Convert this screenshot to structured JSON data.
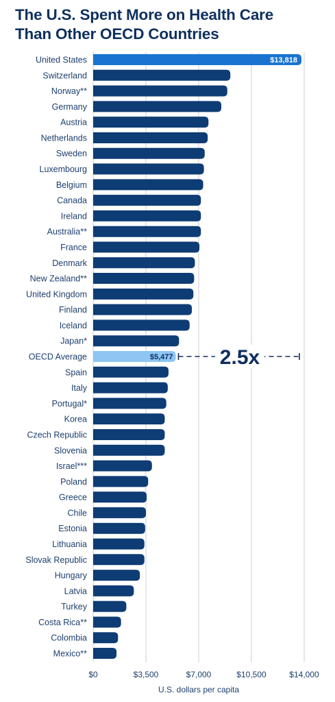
{
  "title_lines": [
    "The U.S. Spent More on Health Care",
    "Than Other OECD Countries"
  ],
  "colors": {
    "bar": "#0e3c74",
    "highlight": "#1a73d0",
    "average": "#8ec6f2",
    "text": "#1d3f6e",
    "grid": "#c9cdd3"
  },
  "chart_data": {
    "type": "bar",
    "orientation": "horizontal",
    "title": "The U.S. Spent More on Health Care Than Other OECD Countries",
    "xlabel": "U.S. dollars per capita",
    "ylabel": "",
    "xlim": [
      0,
      14000
    ],
    "ticks": [
      0,
      3500,
      7000,
      10500,
      14000
    ],
    "tick_labels": [
      "$0",
      "$3,500",
      "$7,000",
      "$10,500",
      "$14,000"
    ],
    "grid": true,
    "categories": [
      "United States",
      "Switzerland",
      "Norway**",
      "Germany",
      "Austria",
      "Netherlands",
      "Sweden",
      "Luxembourg",
      "Belgium",
      "Canada",
      "Ireland",
      "Australia**",
      "France",
      "Denmark",
      "New Zealand**",
      "United Kingdom",
      "Finland",
      "Iceland",
      "Japan*",
      "OECD Average",
      "Spain",
      "Italy",
      "Portugal*",
      "Korea",
      "Czech Republic",
      "Slovenia",
      "Israel***",
      "Poland",
      "Greece",
      "Chile",
      "Estonia",
      "Lithuania",
      "Slovak Republic",
      "Hungary",
      "Latvia",
      "Turkey",
      "Costa Rica**",
      "Colombia",
      "Mexico**"
    ],
    "values": [
      13818,
      9100,
      8900,
      8500,
      7650,
      7600,
      7400,
      7350,
      7300,
      7150,
      7150,
      7150,
      7050,
      6750,
      6700,
      6650,
      6550,
      6400,
      5700,
      5477,
      5000,
      4950,
      4850,
      4750,
      4750,
      4750,
      3900,
      3650,
      3550,
      3500,
      3450,
      3400,
      3400,
      3100,
      2700,
      2200,
      1850,
      1650,
      1550
    ],
    "data_labels": [
      {
        "index": 0,
        "text": "$13,818"
      },
      {
        "index": 19,
        "text": "$5,477"
      }
    ],
    "highlight_index": 0,
    "average_index": 19,
    "annotation": {
      "text": "2.5x",
      "from_value": 5477,
      "to_value": 13818,
      "row_index": 19
    }
  }
}
